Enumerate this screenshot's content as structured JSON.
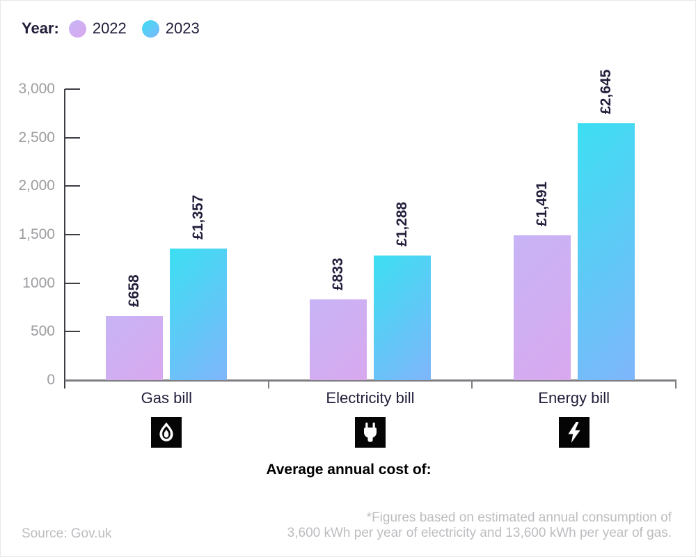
{
  "legend": {
    "title": "Year:",
    "items": [
      {
        "label": "2022",
        "color_from": "#c7b4f6",
        "color_to": "#d9a8ee"
      },
      {
        "label": "2023",
        "color_from": "#3cdff2",
        "color_to": "#7fb5fb"
      }
    ]
  },
  "chart_data": {
    "type": "bar",
    "title": "",
    "categories": [
      "Gas bill",
      "Electricity bill",
      "Energy bill"
    ],
    "category_icons": [
      "gas-flame-icon",
      "plug-icon",
      "lightning-bolt-icon"
    ],
    "series": [
      {
        "name": "2022",
        "values": [
          658,
          833,
          1491
        ],
        "labels": [
          "£658",
          "£833",
          "£1,491"
        ]
      },
      {
        "name": "2023",
        "values": [
          1357,
          1288,
          2645
        ],
        "labels": [
          "£1,357",
          "£1,288",
          "£2,645"
        ]
      }
    ],
    "ylim": [
      0,
      3000
    ],
    "y_ticks": [
      {
        "value": 0,
        "label": "0"
      },
      {
        "value": 500,
        "label": "500"
      },
      {
        "value": 1000,
        "label": "1000"
      },
      {
        "value": 1500,
        "label": "1,500"
      },
      {
        "value": 2000,
        "label": "2,000"
      },
      {
        "value": 2500,
        "label": "2,500"
      },
      {
        "value": 3000,
        "label": "3,000"
      }
    ],
    "xlabel": "Average annual cost of:",
    "legend_position": "top-left",
    "grid": false
  },
  "footer": {
    "source": "Source: Gov.uk",
    "footnote_line1": "*Figures based on estimated annual consumption of",
    "footnote_line2": "3,600 kWh per year of electricity and 13,600 kWh per year of gas."
  },
  "colors": {
    "series_2022_from": "#c7b4f6",
    "series_2022_to": "#d9a8ee",
    "series_2023_from": "#3cdff2",
    "series_2023_to": "#7fb5fb",
    "text_navy": "#211d3a",
    "axis_dark": "#3e3e45",
    "axis_gray": "#7e7e83",
    "tick_label_gray": "#9c9ca0",
    "footer_gray": "#bdbdc1",
    "icon_bg": "#050505"
  }
}
